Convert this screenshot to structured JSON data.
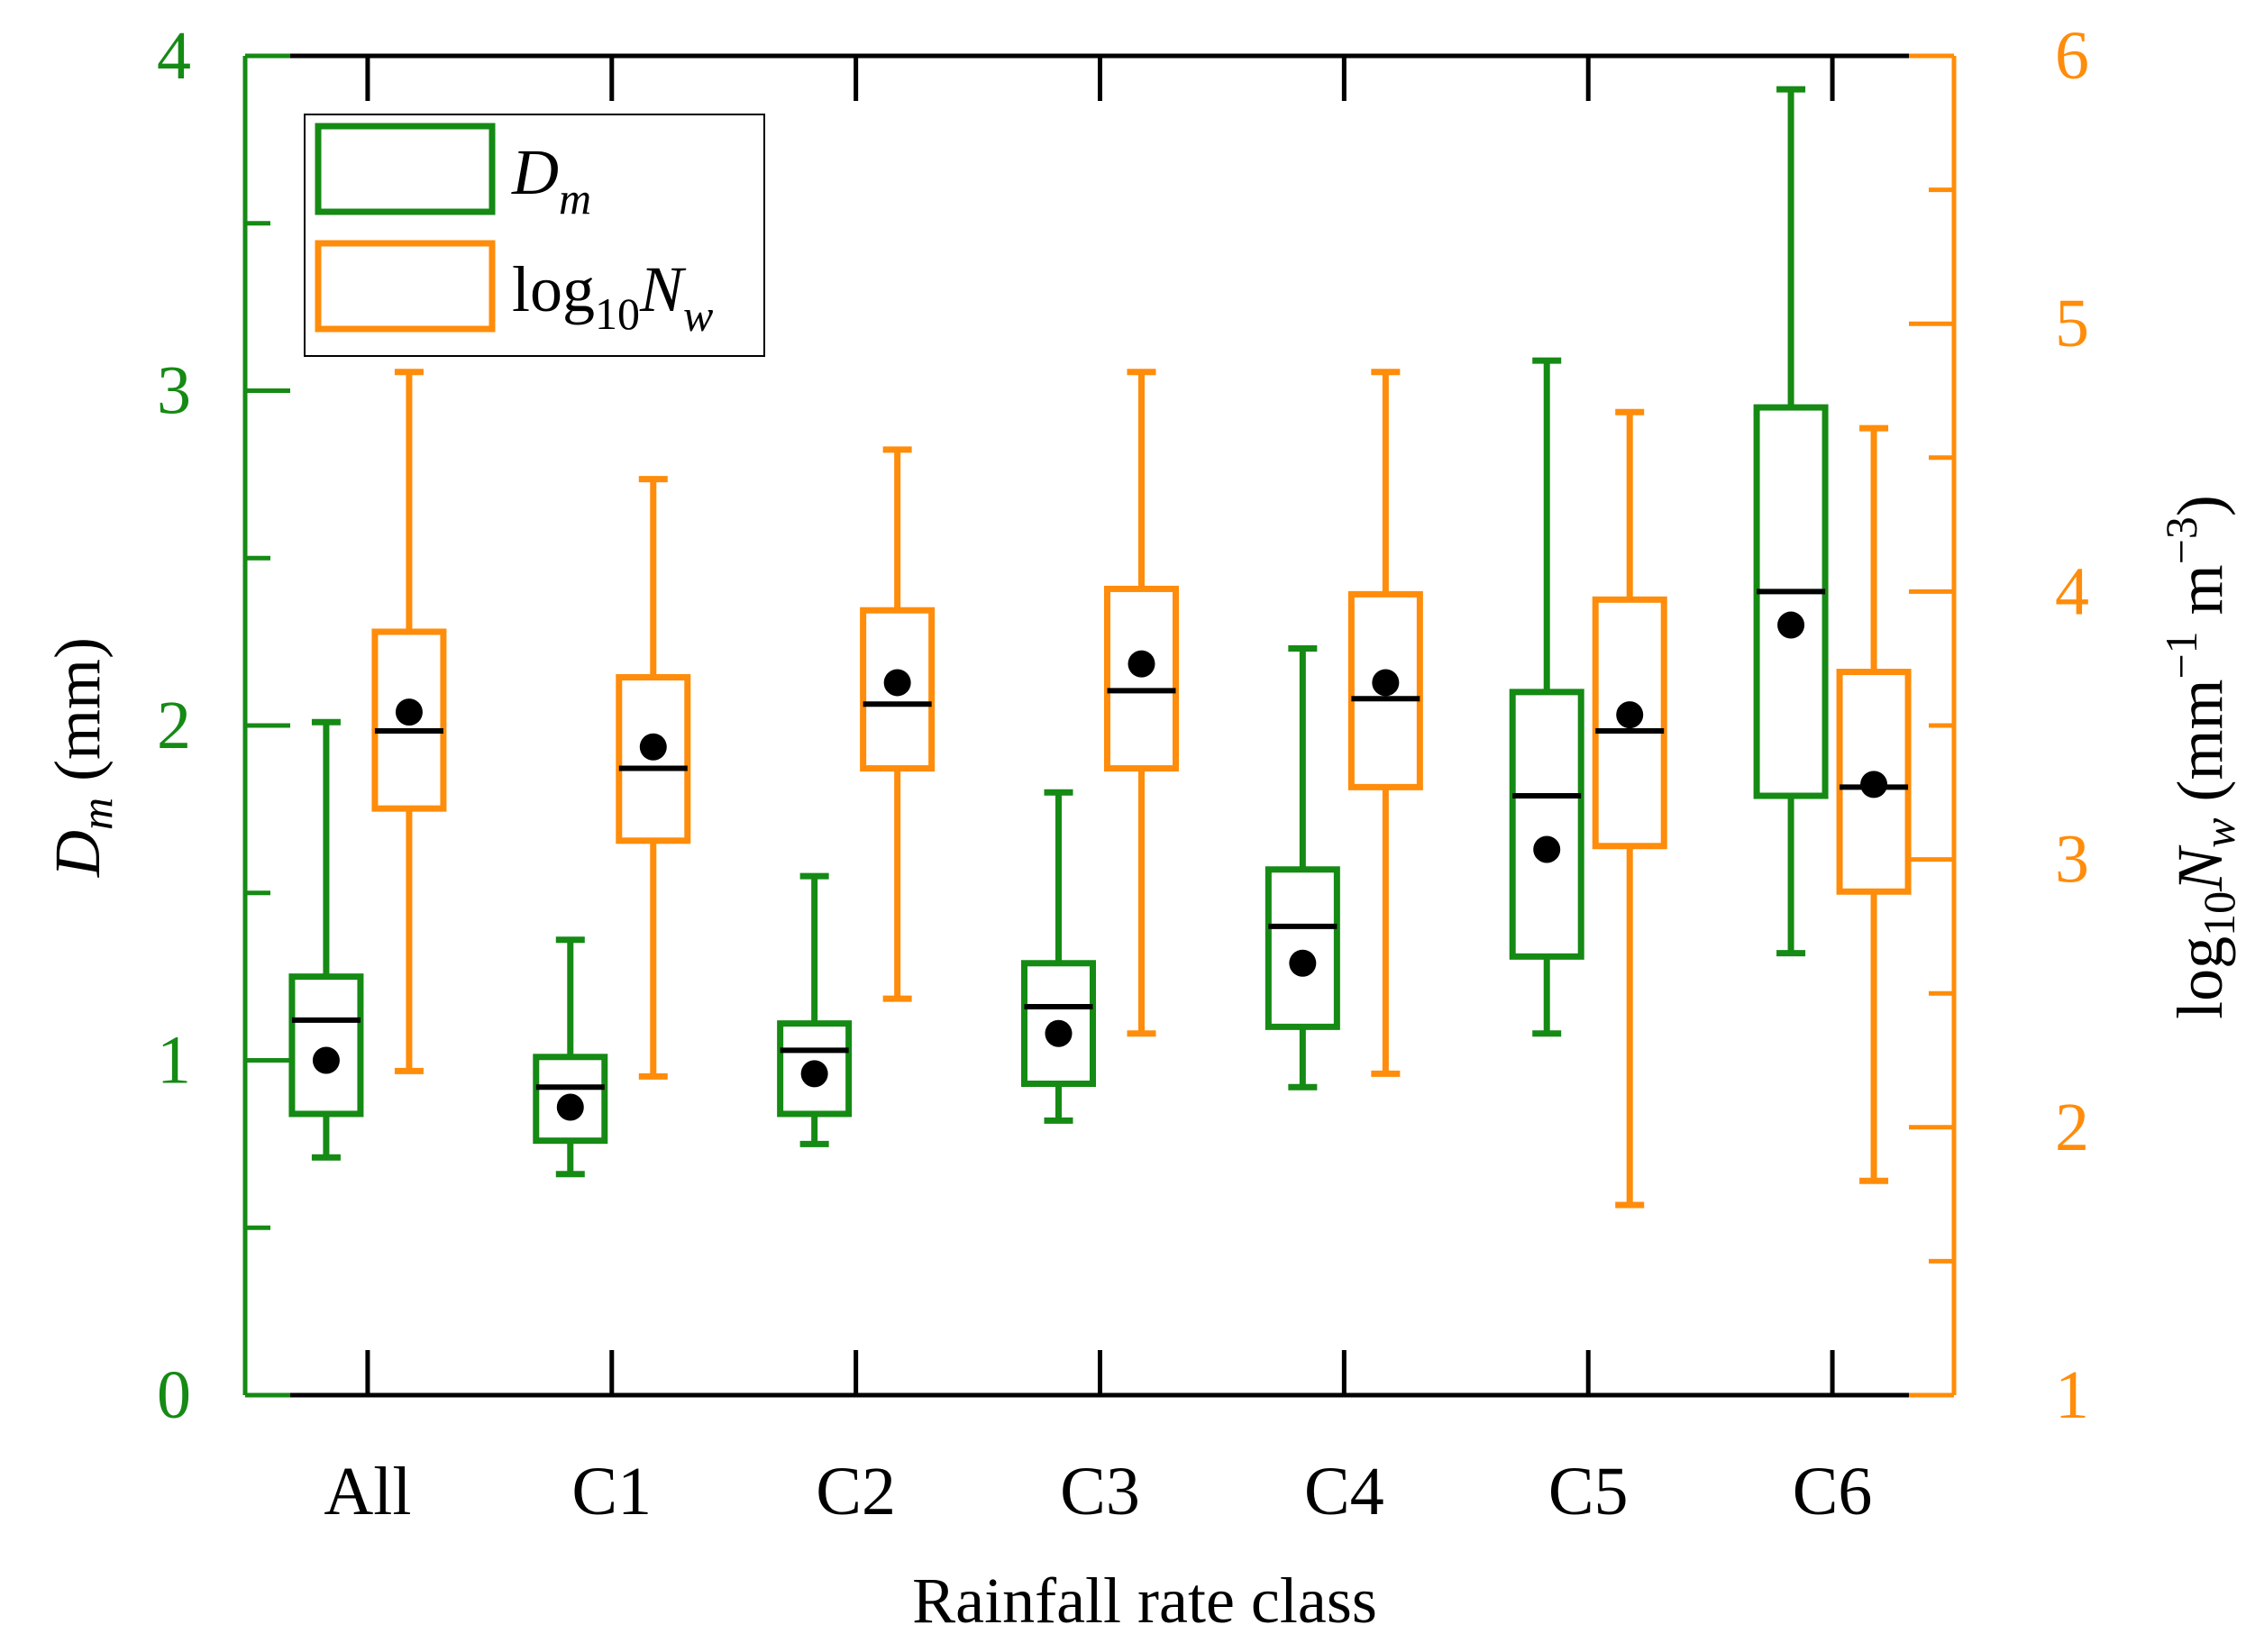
{
  "chart_data": {
    "type": "box",
    "xlabel": "Rainfall rate class",
    "categories": [
      "All",
      "C1",
      "C2",
      "C3",
      "C4",
      "C5",
      "C6"
    ],
    "left_axis": {
      "label_main": "D",
      "label_sub": "m",
      "label_unit": " (mm)",
      "range": [
        0,
        4
      ],
      "ticks": [
        "0",
        "1",
        "2",
        "3",
        "4"
      ],
      "color": "#158a14"
    },
    "right_axis": {
      "label_prefix": "log",
      "label_prefix_sub": "10",
      "label_main": "N",
      "label_sub": "w",
      "label_unit_open": " (mm",
      "label_unit_exp1": "−1",
      "label_unit_mid": " m",
      "label_unit_exp2": "−3",
      "label_unit_close": ")",
      "range": [
        1,
        6
      ],
      "ticks": [
        "1",
        "2",
        "3",
        "4",
        "5",
        "6"
      ],
      "color": "#ff8c0a"
    },
    "legend": {
      "placement": "top-left",
      "items": [
        {
          "main": "D",
          "sub": "m",
          "prefix": "",
          "prefix_sub": "",
          "color": "#158a14"
        },
        {
          "main": "N",
          "sub": "w",
          "prefix": "log",
          "prefix_sub": "10",
          "color": "#ff8c0a"
        }
      ]
    },
    "series": [
      {
        "axis": "left",
        "color": "#158a14",
        "boxes": [
          {
            "whisker_low": 0.71,
            "q1": 0.84,
            "median": 1.12,
            "q3": 1.25,
            "whisker_high": 2.01,
            "mean": 1.0
          },
          {
            "whisker_low": 0.66,
            "q1": 0.76,
            "median": 0.92,
            "q3": 1.01,
            "whisker_high": 1.36,
            "mean": 0.86
          },
          {
            "whisker_low": 0.75,
            "q1": 0.84,
            "median": 1.03,
            "q3": 1.11,
            "whisker_high": 1.55,
            "mean": 0.96
          },
          {
            "whisker_low": 0.82,
            "q1": 0.93,
            "median": 1.16,
            "q3": 1.29,
            "whisker_high": 1.8,
            "mean": 1.08
          },
          {
            "whisker_low": 0.92,
            "q1": 1.1,
            "median": 1.4,
            "q3": 1.57,
            "whisker_high": 2.23,
            "mean": 1.29
          },
          {
            "whisker_low": 1.08,
            "q1": 1.31,
            "median": 1.79,
            "q3": 2.1,
            "whisker_high": 3.09,
            "mean": 1.63
          },
          {
            "whisker_low": 1.32,
            "q1": 1.79,
            "median": 2.4,
            "q3": 2.95,
            "whisker_high": 3.9,
            "mean": 2.3
          }
        ]
      },
      {
        "axis": "right",
        "color": "#ff8c0a",
        "boxes": [
          {
            "whisker_low": 2.21,
            "q1": 3.19,
            "median": 3.48,
            "q3": 3.85,
            "whisker_high": 4.82,
            "mean": 3.55
          },
          {
            "whisker_low": 2.19,
            "q1": 3.07,
            "median": 3.34,
            "q3": 3.68,
            "whisker_high": 4.42,
            "mean": 3.42
          },
          {
            "whisker_low": 2.48,
            "q1": 3.34,
            "median": 3.58,
            "q3": 3.93,
            "whisker_high": 4.53,
            "mean": 3.66
          },
          {
            "whisker_low": 2.35,
            "q1": 3.34,
            "median": 3.63,
            "q3": 4.01,
            "whisker_high": 4.82,
            "mean": 3.73
          },
          {
            "whisker_low": 2.2,
            "q1": 3.27,
            "median": 3.6,
            "q3": 3.99,
            "whisker_high": 4.82,
            "mean": 3.66
          },
          {
            "whisker_low": 1.71,
            "q1": 3.05,
            "median": 3.48,
            "q3": 3.97,
            "whisker_high": 4.67,
            "mean": 3.54
          },
          {
            "whisker_low": 1.8,
            "q1": 2.88,
            "median": 3.27,
            "q3": 3.7,
            "whisker_high": 4.61,
            "mean": 3.28
          }
        ]
      }
    ]
  }
}
